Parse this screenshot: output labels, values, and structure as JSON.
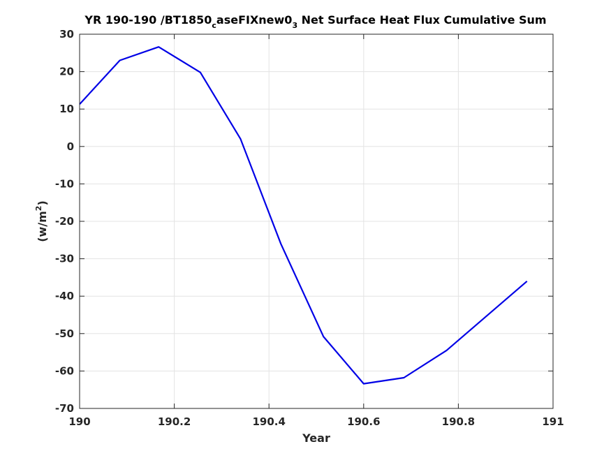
{
  "chart_data": {
    "type": "line",
    "title_parts": {
      "before_sub1": "YR 190-190 /BT1850",
      "sub1": "c",
      "between": "aseFIXnew0",
      "sub2": "3",
      "after": " Net Surface Heat Flux  Cumulative Sum"
    },
    "xlabel": "Year",
    "ylabel_main": "(w/m",
    "ylabel_sup": "2",
    "ylabel_close": ")",
    "xlim": [
      190,
      191
    ],
    "ylim": [
      -70,
      30
    ],
    "xticks": [
      190,
      190.2,
      190.4,
      190.6,
      190.8,
      191
    ],
    "xtick_labels": [
      "190",
      "190.2",
      "190.4",
      "190.6",
      "190.8",
      "191"
    ],
    "yticks": [
      -70,
      -60,
      -50,
      -40,
      -30,
      -20,
      -10,
      0,
      10,
      20,
      30
    ],
    "ytick_labels": [
      "-70",
      "-60",
      "-50",
      "-40",
      "-30",
      "-20",
      "-10",
      "0",
      "10",
      "20",
      "30"
    ],
    "grid": true,
    "series": [
      {
        "color": "#0000e6",
        "x": [
          190.0,
          190.085,
          190.167,
          190.255,
          190.34,
          190.425,
          190.515,
          190.6,
          190.685,
          190.775,
          190.945
        ],
        "y": [
          11.3,
          23.0,
          26.6,
          19.8,
          2.0,
          -26.0,
          -50.8,
          -63.4,
          -61.8,
          -54.5,
          -36.0
        ]
      }
    ]
  }
}
